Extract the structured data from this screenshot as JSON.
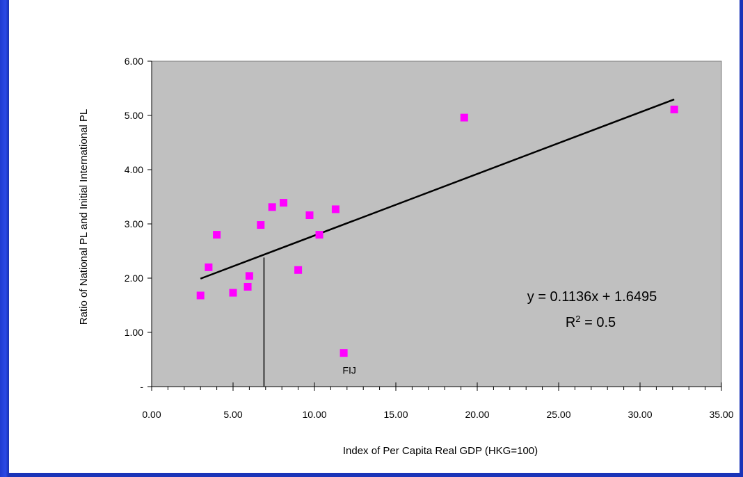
{
  "chart_data": {
    "type": "scatter",
    "xlabel": "Index of Per Capita Real GDP (HKG=100)",
    "ylabel": "Ratio of National PL and Initial International PL",
    "xlim": [
      0,
      35
    ],
    "ylim": [
      0,
      6
    ],
    "x_ticks": [
      "0.00",
      "5.00",
      "10.00",
      "15.00",
      "20.00",
      "25.00",
      "30.00",
      "35.00"
    ],
    "y_ticks": [
      "-",
      "1.00",
      "2.00",
      "3.00",
      "4.00",
      "5.00",
      "6.00"
    ],
    "grid": false,
    "plot_background": "#c0c0c0",
    "marker_color": "#ff00ff",
    "points": [
      {
        "x": 3.0,
        "y": 1.68
      },
      {
        "x": 3.5,
        "y": 2.2
      },
      {
        "x": 4.0,
        "y": 2.8
      },
      {
        "x": 5.0,
        "y": 1.73
      },
      {
        "x": 5.9,
        "y": 1.84
      },
      {
        "x": 6.0,
        "y": 2.04
      },
      {
        "x": 6.7,
        "y": 2.98
      },
      {
        "x": 7.4,
        "y": 3.31
      },
      {
        "x": 8.1,
        "y": 3.39
      },
      {
        "x": 9.0,
        "y": 2.15
      },
      {
        "x": 9.7,
        "y": 3.16
      },
      {
        "x": 10.3,
        "y": 2.8
      },
      {
        "x": 11.3,
        "y": 3.27
      },
      {
        "x": 11.8,
        "y": 0.62,
        "label": "FIJ"
      },
      {
        "x": 19.2,
        "y": 4.96
      },
      {
        "x": 32.1,
        "y": 5.11
      }
    ],
    "trendline": {
      "slope": 0.1136,
      "intercept": 1.6495,
      "x_range": [
        3.0,
        32.1
      ],
      "equation": "y = 0.1136x + 1.6495",
      "r2_label": "R",
      "r2_sup": "2",
      "r2_value": " = 0.5"
    },
    "reference_line": {
      "x": 6.9,
      "y_from": 0,
      "y_to": 2.38
    }
  }
}
